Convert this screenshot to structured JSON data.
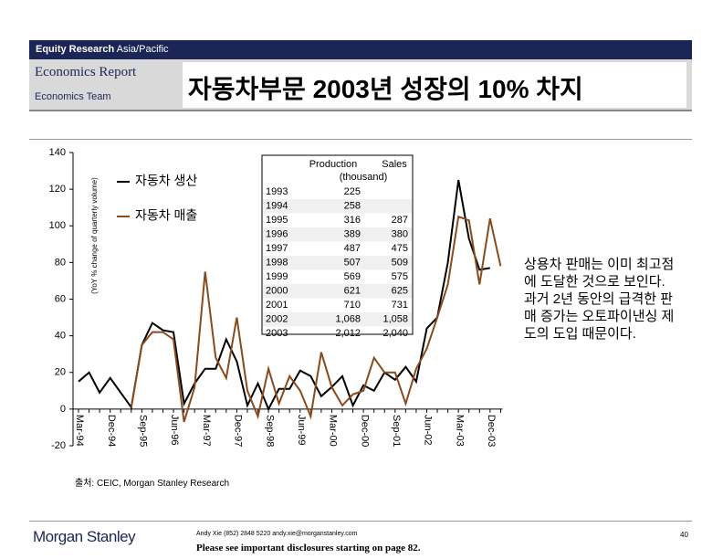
{
  "header": {
    "division": "Equity Research",
    "region": "Asia/Pacific",
    "report": "Economics Report",
    "team": "Economics Team",
    "title": "자동차부문 2003년 성장의 10% 차지"
  },
  "chart_data": {
    "type": "line",
    "y_label": "(YoY % change of quarterly volume)",
    "categories": [
      "Mar-94",
      null,
      null,
      "Dec-94",
      null,
      null,
      "Sep-95",
      null,
      null,
      "Jun-96",
      null,
      null,
      "Mar-97",
      null,
      null,
      "Dec-97",
      null,
      null,
      "Sep-98",
      null,
      null,
      "Jun-99",
      null,
      null,
      "Mar-00",
      null,
      null,
      "Dec-00",
      null,
      null,
      "Sep-01",
      null,
      null,
      "Jun-02",
      null,
      null,
      "Mar-03",
      null,
      null,
      "Dec-03",
      null
    ],
    "series": [
      {
        "name": "자동차 생산",
        "color": "#000000",
        "values": [
          15,
          20,
          9,
          17,
          9,
          1,
          35,
          47,
          43,
          42,
          3,
          14,
          22,
          22,
          38,
          26,
          2,
          14,
          0,
          11,
          11,
          21,
          18,
          7,
          12,
          18,
          2,
          13,
          10,
          20,
          16,
          23,
          15,
          44,
          50,
          80,
          125,
          93,
          76,
          77,
          null
        ]
      },
      {
        "name": "자동차 매출",
        "color": "#8b4a1c",
        "values": [
          null,
          null,
          null,
          null,
          null,
          1,
          35,
          42,
          42,
          38,
          -7,
          12,
          75,
          28,
          17,
          50,
          10,
          -4,
          22,
          3,
          18,
          10,
          -4,
          31,
          12,
          2,
          8,
          10,
          28,
          20,
          20,
          3,
          22,
          33,
          50,
          68,
          105,
          103,
          68,
          104,
          78
        ]
      }
    ],
    "ylim": [
      -20,
      140
    ],
    "yticks": [
      -20,
      0,
      20,
      40,
      60,
      80,
      100,
      120,
      140
    ],
    "table": {
      "header": [
        "Production",
        "Sales",
        "(thousand)"
      ],
      "rows": [
        [
          "1993",
          "225",
          ""
        ],
        [
          "1994",
          "258",
          ""
        ],
        [
          "1995",
          "316",
          "287"
        ],
        [
          "1996",
          "389",
          "380"
        ],
        [
          "1997",
          "487",
          "475"
        ],
        [
          "1998",
          "507",
          "509"
        ],
        [
          "1999",
          "569",
          "575"
        ],
        [
          "2000",
          "621",
          "625"
        ],
        [
          "2001",
          "710",
          "731"
        ],
        [
          "2002",
          "1,068",
          "1,058"
        ],
        [
          "2003",
          "2,012",
          "2,040"
        ]
      ]
    }
  },
  "commentary": "상용차 판매는 이미 최고점에 도달한 것으로 보인다. 과거 2년 동안의 급격한 판매 증가는 오토파이낸싱 제도의 도입 때문이다.",
  "source": "출처: CEIC, Morgan Stanley Research",
  "footer": {
    "contact": "Andy Xie (852) 2848 5220 andy.xie@morganstanley.com",
    "disclosure": "Please see important disclosures starting on page 82.",
    "page": "40",
    "logo": "Morgan Stanley"
  }
}
